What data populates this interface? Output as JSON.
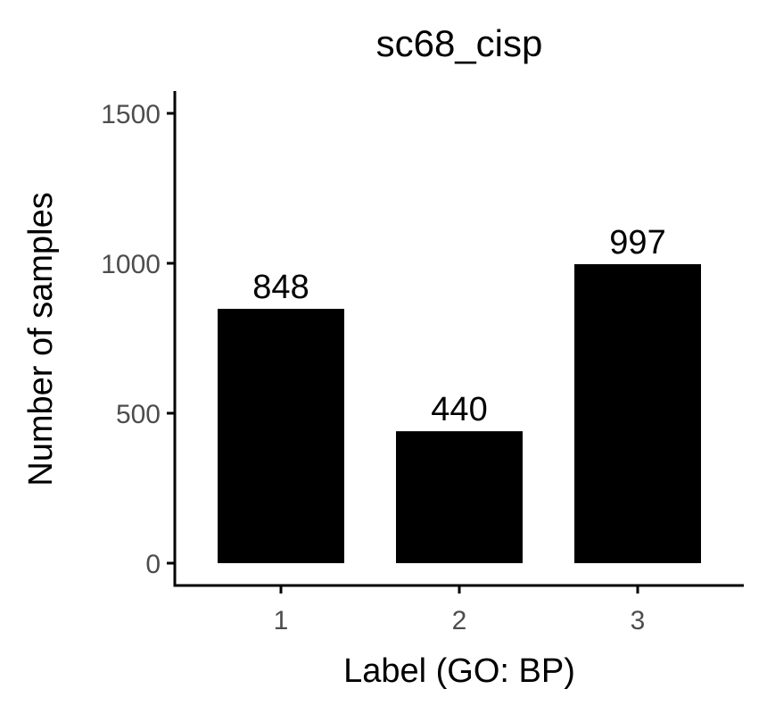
{
  "chart_data": {
    "type": "bar",
    "title": "sc68_cisp",
    "xlabel": "Label (GO: BP)",
    "ylabel": "Number of samples",
    "categories": [
      "1",
      "2",
      "3"
    ],
    "values": [
      848,
      440,
      997
    ],
    "data_labels": [
      "848",
      "440",
      "997"
    ],
    "ylim": [
      0,
      1575
    ],
    "yticks": [
      0,
      500,
      1000,
      1500
    ],
    "ytick_labels": [
      "0",
      "500",
      "1000",
      "1500"
    ],
    "grid": false,
    "legend": "none",
    "bar_color": "#000000"
  }
}
